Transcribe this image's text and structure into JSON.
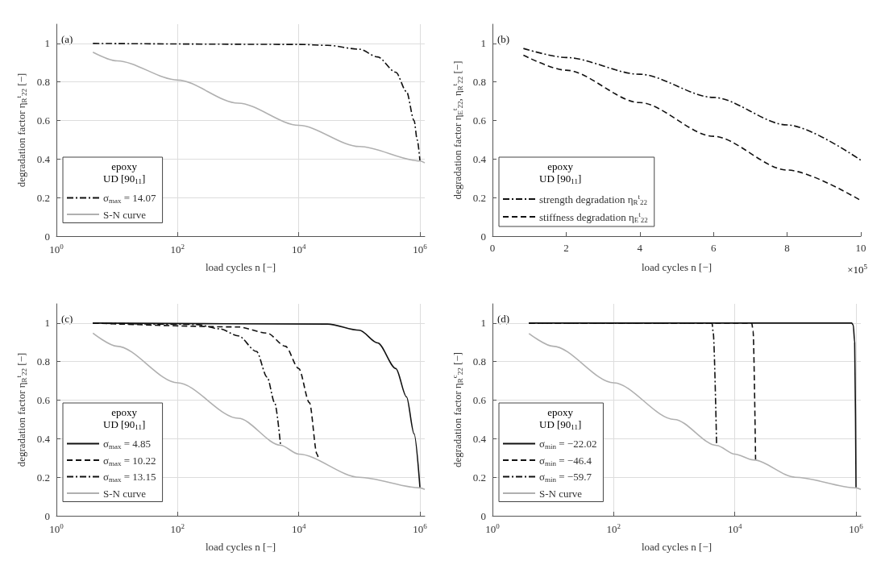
{
  "chart_data": [
    {
      "type": "line",
      "annotations": [
        "(a)"
      ],
      "xlabel": "load cycles n [−]",
      "ylabel": "degradation factor η$_{R}$$^{t}$$_{22}$ [−]",
      "legend_title": "epoxy\nUD [90$_{11}$]",
      "log": "x",
      "grid": true,
      "legend": "bottom left",
      "xlim": [
        1,
        1200000
      ],
      "xticks": [
        {
          "value": 1,
          "label": "10$^{0}$"
        },
        {
          "value": 100,
          "label": "10$^{2}$"
        },
        {
          "value": 10000,
          "label": "10$^{4}$"
        },
        {
          "value": 1000000,
          "label": "10$^{6}$"
        }
      ],
      "ylim": [
        0,
        1.1
      ],
      "yticks": [
        0,
        0.2,
        0.4,
        0.6,
        0.8,
        1
      ],
      "series": [
        {
          "name": "σ$_{max}$ = 14.07",
          "color": "#111111",
          "line_style": "dashdot",
          "x": [
            4,
            10000,
            30000,
            100000,
            200000,
            400000,
            600000,
            800000,
            900000,
            1000000
          ],
          "values": [
            1,
            0.995,
            0.99,
            0.97,
            0.93,
            0.85,
            0.75,
            0.6,
            0.5,
            0.39
          ]
        },
        {
          "name": "S-N curve",
          "color": "#b0b0b0",
          "line_style": "solid",
          "x": [
            4,
            10,
            100,
            1000,
            10000,
            100000,
            1000000,
            1200000
          ],
          "values": [
            0.955,
            0.91,
            0.81,
            0.69,
            0.575,
            0.465,
            0.39,
            0.38
          ]
        }
      ]
    },
    {
      "type": "line",
      "annotations": [
        "(b)",
        "×10$^{5}$"
      ],
      "xlabel": "load cycles n [−]",
      "ylabel": "degradation factor η$_{E}$$^{t}$$_{22}$, η$_{R}$$^{t}$$_{22}$ [−]",
      "legend_title": "epoxy\nUD [90$_{11}$]",
      "legend": "bottom left",
      "xlim": [
        0,
        10
      ],
      "xticks": [
        0,
        2,
        4,
        6,
        8,
        10
      ],
      "ylim": [
        0,
        1.1
      ],
      "yticks": [
        0,
        0.2,
        0.4,
        0.6,
        0.8,
        1
      ],
      "series": [
        {
          "name": "strength degradation η$_{R}$$^{t}$$_{22}$",
          "color": "#111111",
          "line_style": "dashdot",
          "x": [
            0.84,
            2,
            4,
            6,
            8,
            10
          ],
          "values": [
            0.974,
            0.927,
            0.84,
            0.72,
            0.577,
            0.394
          ]
        },
        {
          "name": "stiffness degradation η$_{E}$$^{t}$$_{22}$",
          "color": "#111111",
          "line_style": "dashed",
          "x": [
            0.84,
            2,
            4,
            6,
            8,
            10
          ],
          "values": [
            0.939,
            0.861,
            0.693,
            0.518,
            0.343,
            0.185
          ]
        }
      ]
    },
    {
      "type": "line",
      "annotations": [
        "(c)"
      ],
      "xlabel": "load cycles n [−]",
      "ylabel": "degradation factor η$_{R}$$^{t}$$_{22}$ [−]",
      "legend_title": "epoxy\nUD [90$_{11}$]",
      "log": "x",
      "grid": true,
      "legend": "bottom left",
      "xlim": [
        1,
        1200000
      ],
      "xticks": [
        {
          "value": 1,
          "label": "10$^{0}$"
        },
        {
          "value": 100,
          "label": "10$^{2}$"
        },
        {
          "value": 10000,
          "label": "10$^{4}$"
        },
        {
          "value": 1000000,
          "label": "10$^{6}$"
        }
      ],
      "ylim": [
        0,
        1.1
      ],
      "yticks": [
        0,
        0.2,
        0.4,
        0.6,
        0.8,
        1
      ],
      "series": [
        {
          "name": "σ$_{max}$ = 4.85",
          "color": "#111111",
          "line_style": "solid",
          "x": [
            4,
            30000,
            100000,
            200000,
            400000,
            600000,
            800000,
            1000000
          ],
          "values": [
            1,
            0.995,
            0.963,
            0.897,
            0.764,
            0.617,
            0.425,
            0.145
          ]
        },
        {
          "name": "σ$_{max}$ = 10.22",
          "color": "#111111",
          "line_style": "dashed",
          "x": [
            4,
            1000,
            3000,
            6000,
            10000,
            15000,
            20000,
            21000
          ],
          "values": [
            1,
            0.98,
            0.948,
            0.88,
            0.764,
            0.587,
            0.32,
            0.3
          ]
        },
        {
          "name": "σ$_{max}$ = 13.15",
          "color": "#111111",
          "line_style": "dashdot",
          "x": [
            4,
            200,
            500,
            1000,
            2000,
            3000,
            4000,
            5000
          ],
          "values": [
            1,
            0.993,
            0.97,
            0.934,
            0.853,
            0.72,
            0.587,
            0.366
          ]
        },
        {
          "name": "S-N curve",
          "color": "#b0b0b0",
          "line_style": "solid",
          "x": [
            4,
            10,
            100,
            1000,
            5000,
            10000,
            100000,
            1000000,
            1200000
          ],
          "values": [
            0.948,
            0.88,
            0.69,
            0.506,
            0.366,
            0.32,
            0.2,
            0.145,
            0.137
          ]
        }
      ]
    },
    {
      "type": "line",
      "annotations": [
        "(d)"
      ],
      "xlabel": "load cycles n [−]",
      "ylabel": "degradation factor η$_{R}$$^{c}$$_{22}$ [−]",
      "legend_title": "epoxy\nUD [90$_{11}$]",
      "log": "x",
      "grid": true,
      "legend": "bottom left",
      "xlim": [
        1,
        1200000
      ],
      "xticks": [
        {
          "value": 1,
          "label": "10$^{0}$"
        },
        {
          "value": 100,
          "label": "10$^{2}$"
        },
        {
          "value": 10000,
          "label": "10$^{4}$"
        },
        {
          "value": 1000000,
          "label": "10$^{6}$"
        }
      ],
      "ylim": [
        0,
        1.1
      ],
      "yticks": [
        0,
        0.2,
        0.4,
        0.6,
        0.8,
        1
      ],
      "series": [
        {
          "name": "σ$_{min}$ = −22.02",
          "color": "#111111",
          "line_style": "solid",
          "x": [
            4,
            850000,
            900000,
            950000,
            1000000
          ],
          "values": [
            1,
            1,
            0.99,
            0.9,
            0.145
          ]
        },
        {
          "name": "σ$_{min}$ = −46.4",
          "color": "#111111",
          "line_style": "dashed",
          "x": [
            4,
            19000,
            20000,
            22000
          ],
          "values": [
            1,
            1,
            0.96,
            0.29
          ]
        },
        {
          "name": "σ$_{min}$ = −59.7",
          "color": "#111111",
          "line_style": "dashdot",
          "x": [
            4,
            4200,
            4400,
            5000
          ],
          "values": [
            1,
            1,
            0.95,
            0.365
          ]
        },
        {
          "name": "S-N curve",
          "color": "#b0b0b0",
          "line_style": "solid",
          "x": [
            4,
            10,
            100,
            1000,
            5000,
            10000,
            20000,
            100000,
            1000000,
            1200000
          ],
          "values": [
            0.946,
            0.88,
            0.69,
            0.5,
            0.365,
            0.32,
            0.29,
            0.2,
            0.145,
            0.137
          ]
        }
      ]
    }
  ]
}
